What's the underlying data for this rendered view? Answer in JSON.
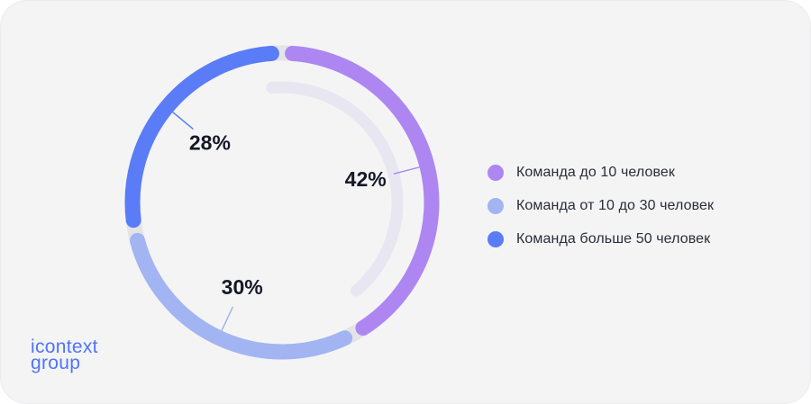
{
  "chart_data": {
    "type": "pie",
    "style": "donut",
    "slices": [
      {
        "label": "Команда до 10 человек",
        "value": 42,
        "value_label": "42%",
        "color": "#ae86f2"
      },
      {
        "label": "Команда от 10 до 30 человек",
        "value": 30,
        "value_label": "30%",
        "color": "#a2b4f1"
      },
      {
        "label": "Команда больше 50 человек",
        "value": 28,
        "value_label": "28%",
        "color": "#5a7cf6"
      }
    ],
    "legend_position": "right"
  },
  "logo": {
    "line1": "icontext",
    "line2": "group"
  }
}
